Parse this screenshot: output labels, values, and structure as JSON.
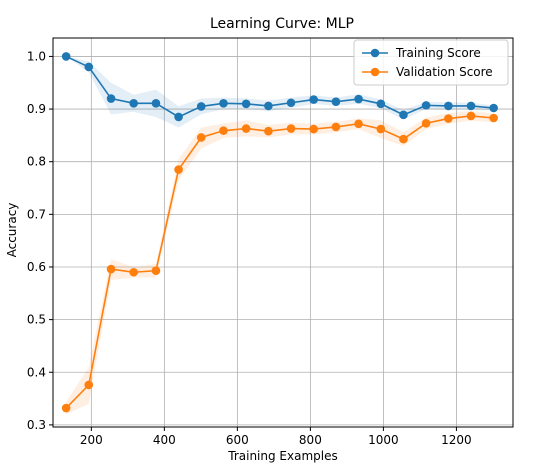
{
  "chart_data": {
    "type": "line",
    "title": "Learning Curve: MLP",
    "xlabel": "Training Examples",
    "ylabel": "Accuracy",
    "xlim": [
      95,
      1355
    ],
    "ylim": [
      0.296,
      1.035
    ],
    "xticks": [
      200,
      400,
      600,
      800,
      1000,
      1200
    ],
    "yticks": [
      0.3,
      0.4,
      0.5,
      0.6,
      0.7,
      0.8,
      0.9,
      1.0
    ],
    "xtick_labels": [
      "200",
      "400",
      "600",
      "800",
      "1000",
      "1200"
    ],
    "ytick_labels": [
      "0.3",
      "0.4",
      "0.5",
      "0.6",
      "0.7",
      "0.8",
      "0.9",
      "1.0"
    ],
    "grid": true,
    "legend_position": "top-right",
    "x": [
      131,
      193,
      254,
      316,
      377,
      439,
      501,
      562,
      624,
      685,
      747,
      809,
      870,
      932,
      993,
      1055,
      1117,
      1178,
      1240,
      1302
    ],
    "series": [
      {
        "name": "Training Score",
        "color": "#1f77b4",
        "values": [
          1.0,
          0.98,
          0.92,
          0.911,
          0.911,
          0.885,
          0.905,
          0.911,
          0.91,
          0.906,
          0.912,
          0.918,
          0.914,
          0.919,
          0.91,
          0.889,
          0.907,
          0.906,
          0.906,
          0.902
        ],
        "band_lower": [
          1.0,
          0.97,
          0.89,
          0.895,
          0.885,
          0.865,
          0.89,
          0.9,
          0.9,
          0.896,
          0.902,
          0.91,
          0.906,
          0.91,
          0.902,
          0.88,
          0.9,
          0.899,
          0.9,
          0.897
        ],
        "band_upper": [
          1.0,
          0.99,
          0.95,
          0.927,
          0.937,
          0.905,
          0.92,
          0.922,
          0.92,
          0.916,
          0.922,
          0.926,
          0.922,
          0.928,
          0.918,
          0.898,
          0.914,
          0.913,
          0.912,
          0.907
        ]
      },
      {
        "name": "Validation Score",
        "color": "#ff7f0e",
        "values": [
          0.332,
          0.376,
          0.596,
          0.59,
          0.593,
          0.785,
          0.846,
          0.859,
          0.863,
          0.858,
          0.863,
          0.862,
          0.866,
          0.872,
          0.862,
          0.843,
          0.873,
          0.882,
          0.887,
          0.883
        ],
        "band_lower": [
          0.32,
          0.34,
          0.575,
          0.58,
          0.58,
          0.765,
          0.825,
          0.845,
          0.848,
          0.846,
          0.852,
          0.852,
          0.856,
          0.862,
          0.845,
          0.83,
          0.862,
          0.872,
          0.878,
          0.875
        ],
        "band_upper": [
          0.344,
          0.41,
          0.615,
          0.6,
          0.606,
          0.805,
          0.865,
          0.873,
          0.878,
          0.87,
          0.874,
          0.872,
          0.876,
          0.882,
          0.879,
          0.856,
          0.884,
          0.892,
          0.896,
          0.891
        ]
      }
    ]
  }
}
